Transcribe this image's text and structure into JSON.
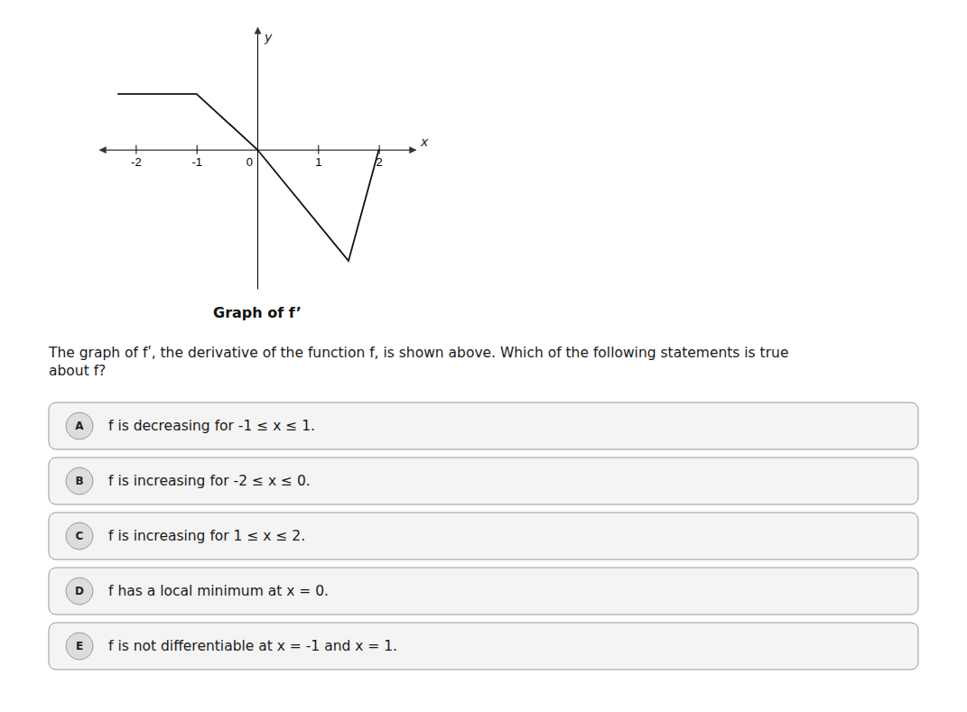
{
  "chart_data": {
    "type": "line",
    "title": "Graph of f’",
    "subtitle": "The graph of fʹ, the derivative of the function f, is shown above. Which of the following statements is true\nabout f?",
    "x_label": "x",
    "y_label": "y",
    "x": [
      -2.3,
      -1,
      0,
      1.5,
      2.0
    ],
    "values": [
      1.0,
      1.0,
      0.0,
      -2.0,
      0.0
    ],
    "color": "#111111",
    "xlim": [
      -2.6,
      2.6
    ],
    "ylim": [
      -2.5,
      2.2
    ],
    "xticks": [
      -2,
      -1,
      0,
      1,
      2
    ],
    "yticks": [],
    "tick_labels": "x",
    "grid": false,
    "annotations": [
      {
        "label": "A",
        "text": "f is decreasing for -1 ≤ x ≤ 1."
      },
      {
        "label": "B",
        "text": "f is increasing for -2 ≤ x ≤ 0."
      },
      {
        "label": "C",
        "text": "f is increasing for 1 ≤ x ≤ 2."
      },
      {
        "label": "D",
        "text": "f has a local minimum at x = 0."
      },
      {
        "label": "E",
        "text": "f is not differentiable at x = -1 and x = 1."
      }
    ]
  }
}
